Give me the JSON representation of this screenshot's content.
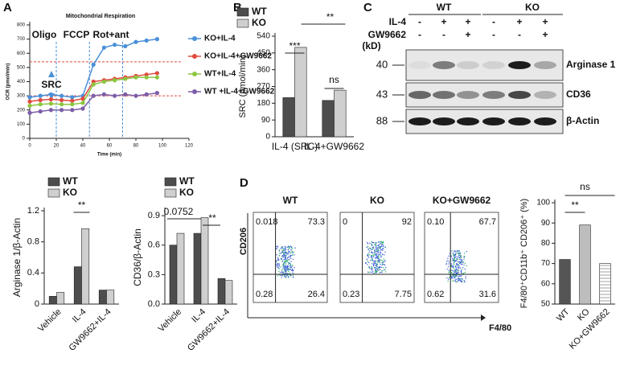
{
  "panel_labels": [
    "A",
    "B",
    "C",
    "D"
  ],
  "chart_data": [
    {
      "type": "line",
      "title": "Mitochondrial Respiration",
      "x_label": "Time (min)",
      "y_label": "OCR (pmol/min)",
      "xlim": [
        0,
        120
      ],
      "xticks": [
        0,
        20,
        40,
        60,
        80,
        100,
        120
      ],
      "ylim": [
        0,
        800
      ],
      "yticks": [
        0,
        100,
        200,
        300,
        400,
        500,
        600,
        700,
        800
      ],
      "injections": [
        {
          "label": "Oligo",
          "x": 20
        },
        {
          "label": "FCCP",
          "x": 45
        },
        {
          "label": "Rot+ant",
          "x": 70
        }
      ],
      "src_label": "SRC",
      "src_lines": [
        540,
        300
      ],
      "series": [
        {
          "name": "KO+IL-4",
          "color": "#4a90d9",
          "x": [
            0,
            8,
            16,
            24,
            32,
            40,
            48,
            56,
            64,
            72,
            80,
            88,
            96
          ],
          "values": [
            290,
            300,
            310,
            300,
            290,
            300,
            520,
            640,
            660,
            650,
            680,
            690,
            700
          ]
        },
        {
          "name": "KO+IL-4+GW9662",
          "color": "#e04a3f",
          "x": [
            0,
            8,
            16,
            24,
            32,
            40,
            48,
            56,
            64,
            72,
            80,
            88,
            96
          ],
          "values": [
            260,
            270,
            275,
            270,
            265,
            280,
            400,
            410,
            420,
            430,
            440,
            450,
            460
          ]
        },
        {
          "name": "WT+IL-4",
          "color": "#8cc63f",
          "x": [
            0,
            8,
            16,
            24,
            32,
            40,
            48,
            56,
            64,
            72,
            80,
            88,
            96
          ],
          "values": [
            230,
            240,
            245,
            240,
            240,
            250,
            380,
            400,
            410,
            420,
            430,
            430,
            430
          ]
        },
        {
          "name": "WT +IL-4+GW9662",
          "color": "#7b5ea7",
          "x": [
            0,
            8,
            16,
            24,
            32,
            40,
            48,
            56,
            64,
            72,
            80,
            88,
            96
          ],
          "values": [
            180,
            190,
            200,
            200,
            200,
            210,
            300,
            310,
            300,
            310,
            300,
            310,
            320
          ]
        }
      ]
    },
    {
      "type": "bar",
      "y_label": "SRC (pmol/min)",
      "categories": [
        "IL-4 (SRC)",
        "IL-4+GW9662"
      ],
      "ylim": [
        0,
        540
      ],
      "yticks": [
        0,
        90,
        180,
        270,
        360,
        450,
        540
      ],
      "series": [
        {
          "name": "WT",
          "color": "#4d4d4d",
          "values": [
            210,
            195
          ]
        },
        {
          "name": "KO",
          "color": "#cfcfcf",
          "values": [
            480,
            250
          ]
        }
      ],
      "annotations": [
        "***",
        "**",
        "ns"
      ]
    },
    {
      "type": "bar",
      "y_label": "Arginase 1/β-Actin",
      "categories": [
        "Vehicle",
        "IL-4",
        "GW9662+IL-4"
      ],
      "ylim": [
        0,
        1.2
      ],
      "yticks": [
        0,
        0.4,
        0.8,
        1.2
      ],
      "series": [
        {
          "name": "WT",
          "color": "#4d4d4d",
          "values": [
            0.1,
            0.48,
            0.18
          ]
        },
        {
          "name": "KO",
          "color": "#cfcfcf",
          "values": [
            0.15,
            0.97,
            0.18
          ]
        }
      ],
      "annotations": [
        "**"
      ]
    },
    {
      "type": "bar",
      "y_label": "CD36/β-Actin",
      "categories": [
        "Vehicle",
        "IL-4",
        "GW9662+IL-4"
      ],
      "ylim": [
        0,
        0.95
      ],
      "yticks": [
        {
          "value": 0,
          "label": "0.0"
        },
        0.3,
        0.6,
        0.9
      ],
      "series": [
        {
          "name": "WT",
          "color": "#4d4d4d",
          "values": [
            0.6,
            0.72,
            0.26
          ]
        },
        {
          "name": "KO",
          "color": "#cfcfcf",
          "values": [
            0.72,
            0.88,
            0.24
          ]
        }
      ],
      "annotations": [
        "0.0752",
        "**"
      ]
    },
    {
      "type": "bar",
      "y_label": "F4/80⁺CD11b⁺ CD206⁺ (%)",
      "categories": [
        "WT",
        "KO",
        "KO+GW9662"
      ],
      "ylim": [
        50,
        100
      ],
      "yticks": [
        50,
        60,
        70,
        80,
        90,
        100
      ],
      "colors": [
        "#555555",
        "#bdbdbd",
        "#ffffff"
      ],
      "values": [
        72,
        89,
        70
      ],
      "annotations": [
        "**",
        "ns"
      ]
    }
  ],
  "blot": {
    "groups": [
      "WT",
      "KO"
    ],
    "rows": [
      {
        "label": "IL-4",
        "signs": [
          "-",
          "+",
          "+",
          "-",
          "+",
          "+"
        ]
      },
      {
        "label": "GW9662",
        "signs": [
          "-",
          "-",
          "+",
          "-",
          "-",
          "+"
        ]
      }
    ],
    "unit": "(kD)",
    "bands": [
      {
        "kd": "40",
        "label": "Arginase 1"
      },
      {
        "kd": "43",
        "label": "CD36"
      },
      {
        "kd": "88",
        "label": "β-Actin"
      }
    ]
  },
  "flow": {
    "x_label": "F4/80",
    "y_label": "CD206",
    "plots": [
      {
        "title": "WT",
        "quadrants": [
          "0.018",
          "73.3",
          "0.28",
          "26.4"
        ]
      },
      {
        "title": "KO",
        "quadrants": [
          "0",
          "92",
          "0.23",
          "7.75"
        ]
      },
      {
        "title": "KO+GW9662",
        "quadrants": [
          "0.10",
          "67.7",
          "0.62",
          "31.6"
        ]
      }
    ]
  }
}
